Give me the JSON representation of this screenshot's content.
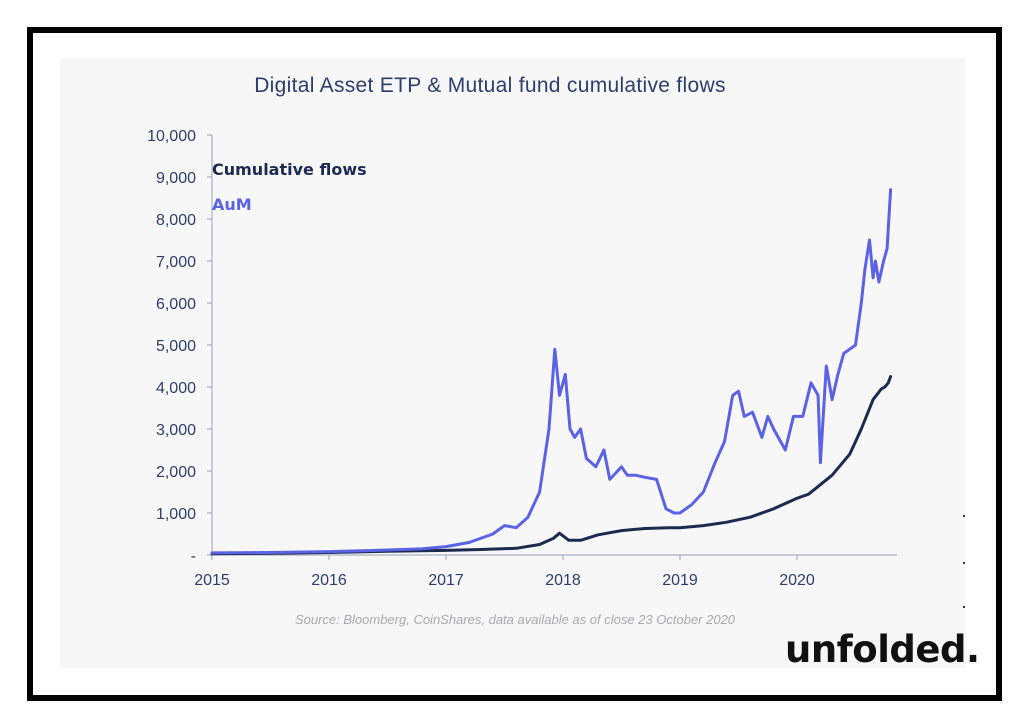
{
  "brand": "unfolded.",
  "source_note": "Source: Bloomberg, CoinShares, data available as of close 23 October 2020",
  "colors": {
    "flows": "#1b2a4e",
    "aum": "#5b62e3",
    "axis_text": "#2d3e6b"
  },
  "chart_data": {
    "type": "line",
    "title": "Digital Asset ETP & Mutual fund cumulative flows",
    "xlabel": "",
    "ylabel": "",
    "xlim": [
      2015.0,
      2020.82
    ],
    "ylim": [
      0,
      10000
    ],
    "x_ticks": [
      "2015",
      "2016",
      "2017",
      "2018",
      "2019",
      "2020"
    ],
    "y_ticks": [
      "-",
      "1,000",
      "2,000",
      "3,000",
      "4,000",
      "5,000",
      "6,000",
      "7,000",
      "8,000",
      "9,000",
      "10,000"
    ],
    "legend": [
      "Cumulative flows",
      "AuM"
    ],
    "legend_position": "top-left",
    "grid": false,
    "series": [
      {
        "name": "Cumulative flows",
        "x": [
          2015.0,
          2015.5,
          2016.0,
          2016.5,
          2017.0,
          2017.3,
          2017.6,
          2017.8,
          2017.92,
          2017.97,
          2018.05,
          2018.15,
          2018.3,
          2018.5,
          2018.7,
          2018.9,
          2019.0,
          2019.2,
          2019.4,
          2019.6,
          2019.8,
          2020.0,
          2020.1,
          2020.3,
          2020.45,
          2020.55,
          2020.65,
          2020.72,
          2020.75,
          2020.78,
          2020.8
        ],
        "values": [
          30,
          40,
          60,
          90,
          110,
          130,
          160,
          250,
          400,
          520,
          350,
          350,
          480,
          580,
          630,
          650,
          650,
          700,
          780,
          900,
          1100,
          1350,
          1450,
          1900,
          2400,
          3000,
          3700,
          3950,
          4000,
          4100,
          4250
        ]
      },
      {
        "name": "AuM",
        "x": [
          2015.0,
          2015.5,
          2016.0,
          2016.4,
          2016.8,
          2017.0,
          2017.2,
          2017.4,
          2017.5,
          2017.6,
          2017.7,
          2017.8,
          2017.88,
          2017.93,
          2017.97,
          2018.02,
          2018.06,
          2018.1,
          2018.15,
          2018.2,
          2018.28,
          2018.35,
          2018.4,
          2018.5,
          2018.55,
          2018.62,
          2018.7,
          2018.8,
          2018.88,
          2018.95,
          2019.0,
          2019.1,
          2019.2,
          2019.3,
          2019.38,
          2019.45,
          2019.5,
          2019.55,
          2019.62,
          2019.7,
          2019.75,
          2019.8,
          2019.9,
          2019.97,
          2020.05,
          2020.12,
          2020.18,
          2020.2,
          2020.25,
          2020.3,
          2020.35,
          2020.4,
          2020.45,
          2020.5,
          2020.55,
          2020.58,
          2020.62,
          2020.65,
          2020.67,
          2020.7,
          2020.74,
          2020.77,
          2020.8
        ],
        "values": [
          50,
          60,
          80,
          110,
          150,
          200,
          300,
          500,
          700,
          650,
          900,
          1500,
          3000,
          4900,
          3800,
          4300,
          3000,
          2800,
          3000,
          2300,
          2100,
          2500,
          1800,
          2100,
          1900,
          1900,
          1850,
          1800,
          1100,
          1000,
          1000,
          1200,
          1500,
          2200,
          2700,
          3800,
          3900,
          3300,
          3400,
          2800,
          3300,
          3000,
          2500,
          3300,
          3300,
          4100,
          3800,
          2200,
          4500,
          3700,
          4300,
          4800,
          4900,
          5000,
          6000,
          6800,
          7500,
          6600,
          7000,
          6500,
          7000,
          7300,
          8700
        ]
      }
    ]
  }
}
